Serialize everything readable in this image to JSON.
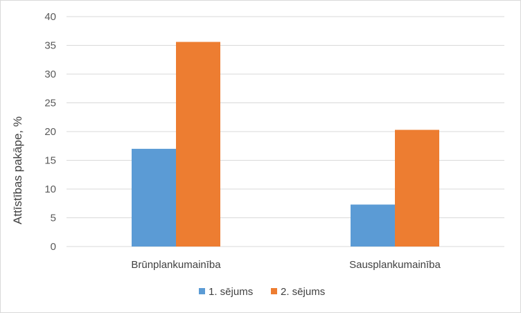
{
  "chart_data": {
    "type": "bar",
    "title": "",
    "xlabel": "",
    "ylabel": "Attīstības pakāpe, %",
    "ylim": [
      0,
      40
    ],
    "yticks": [
      0,
      5,
      10,
      15,
      20,
      25,
      30,
      35,
      40
    ],
    "grid": true,
    "legend_position": "bottom",
    "categories": [
      "Brūnplankumainība",
      "Sausplankumainība"
    ],
    "series": [
      {
        "name": "1. sējums",
        "color": "#5b9bd5",
        "values": [
          17.0,
          7.3
        ]
      },
      {
        "name": "2. sējums",
        "color": "#ed7d31",
        "values": [
          35.6,
          20.3
        ]
      }
    ]
  }
}
